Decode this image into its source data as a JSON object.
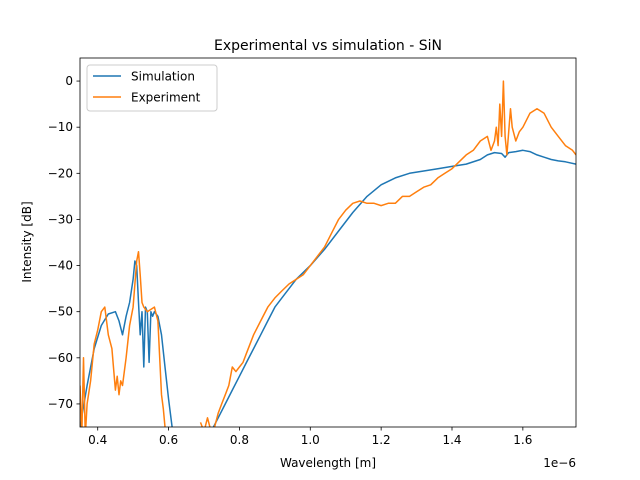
{
  "chart_data": {
    "type": "line",
    "title": "Experimental vs simulation - SiN",
    "xlabel": "Wavelength [m]",
    "ylabel": "Intensity [dB]",
    "x_offset_label": "1e−6",
    "xlim": [
      0.35,
      1.75
    ],
    "ylim": [
      -75,
      5
    ],
    "x_scale_note": "x values in units of 1e-6 m",
    "xticks": [
      0.4,
      0.6,
      0.8,
      1.0,
      1.2,
      1.4,
      1.6
    ],
    "xtick_labels": [
      "0.4",
      "0.6",
      "0.8",
      "1.0",
      "1.2",
      "1.4",
      "1.6"
    ],
    "yticks": [
      0,
      -10,
      -20,
      -30,
      -40,
      -50,
      -60,
      -70
    ],
    "ytick_labels": [
      "0",
      "−10",
      "−20",
      "−30",
      "−40",
      "−50",
      "−60",
      "−70"
    ],
    "grid": false,
    "legend_position": "upper-left",
    "series": [
      {
        "name": "Simulation",
        "color": "#1f77b4",
        "x": [
          0.35,
          0.37,
          0.39,
          0.41,
          0.43,
          0.45,
          0.46,
          0.47,
          0.48,
          0.49,
          0.5,
          0.505,
          0.51,
          0.515,
          0.52,
          0.525,
          0.53,
          0.535,
          0.54,
          0.545,
          0.55,
          0.555,
          0.56,
          0.57,
          0.58,
          0.59,
          0.6,
          0.61,
          0.62
        ],
        "y": [
          -75,
          -66,
          -58,
          -53,
          -50.5,
          -50,
          -52,
          -55,
          -51,
          -48,
          -43,
          -39,
          -40,
          -48,
          -55,
          -50,
          -62,
          -49,
          -50,
          -61,
          -50,
          -51,
          -50,
          -51,
          -55,
          -62,
          -69,
          -75,
          -78
        ],
        "x2": [
          0.7,
          0.72,
          0.74,
          0.76,
          0.78,
          0.8,
          0.82,
          0.84,
          0.86,
          0.88,
          0.9,
          0.93,
          0.96,
          1.0,
          1.04,
          1.08,
          1.12,
          1.16,
          1.2,
          1.24,
          1.28,
          1.32,
          1.36,
          1.4,
          1.44,
          1.48,
          1.5,
          1.52,
          1.54,
          1.55,
          1.56,
          1.58,
          1.6,
          1.62,
          1.64,
          1.66,
          1.68,
          1.7,
          1.72,
          1.75
        ],
        "y2": [
          -79,
          -76,
          -73,
          -70,
          -67,
          -64,
          -61,
          -58,
          -55,
          -52,
          -49,
          -46,
          -43,
          -40,
          -36.5,
          -32.5,
          -28.5,
          -25,
          -22.5,
          -21,
          -20,
          -19.5,
          -19,
          -18.5,
          -18,
          -17,
          -16,
          -15.5,
          -15.7,
          -16.5,
          -15.5,
          -15.3,
          -15,
          -15.3,
          -16,
          -16.5,
          -17,
          -17.3,
          -17.5,
          -18
        ]
      },
      {
        "name": "Experiment",
        "color": "#ff7f0e",
        "x": [
          0.35,
          0.355,
          0.36,
          0.365,
          0.37,
          0.38,
          0.39,
          0.4,
          0.41,
          0.42,
          0.43,
          0.44,
          0.45,
          0.455,
          0.46,
          0.465,
          0.47,
          0.48,
          0.49,
          0.5,
          0.505,
          0.51,
          0.515,
          0.52,
          0.525,
          0.53,
          0.54,
          0.55,
          0.56,
          0.57,
          0.575,
          0.58,
          0.585,
          0.59
        ],
        "y": [
          -66,
          -77,
          -60,
          -77,
          -70,
          -65,
          -57,
          -54,
          -50,
          -49,
          -55,
          -58,
          -67,
          -64,
          -68,
          -65,
          -66,
          -60,
          -53,
          -49,
          -44,
          -39,
          -37,
          -42,
          -48,
          -49,
          -50,
          -49.5,
          -49,
          -52,
          -60,
          -68,
          -71,
          -75
        ],
        "x2": [
          0.69,
          0.7,
          0.71,
          0.72,
          0.73,
          0.74,
          0.75,
          0.76,
          0.77,
          0.78,
          0.79,
          0.8,
          0.81,
          0.82,
          0.84,
          0.86,
          0.88,
          0.9,
          0.92,
          0.94,
          0.96,
          0.98,
          1.0,
          1.02,
          1.04,
          1.06,
          1.08,
          1.1,
          1.12,
          1.14,
          1.16,
          1.18,
          1.2,
          1.22,
          1.24,
          1.26,
          1.28,
          1.3,
          1.32,
          1.34,
          1.36,
          1.38,
          1.4,
          1.42,
          1.44,
          1.46,
          1.48,
          1.5,
          1.51,
          1.52,
          1.525,
          1.53,
          1.535,
          1.54,
          1.545,
          1.55,
          1.555,
          1.56,
          1.565,
          1.57,
          1.58,
          1.59,
          1.6,
          1.62,
          1.64,
          1.66,
          1.68,
          1.7,
          1.72,
          1.74,
          1.75
        ],
        "y2": [
          -74,
          -76,
          -73,
          -76,
          -75,
          -72,
          -70,
          -68,
          -66,
          -62,
          -63,
          -62,
          -61,
          -59,
          -55,
          -52,
          -49,
          -47,
          -45.5,
          -44,
          -43,
          -42,
          -40,
          -38,
          -36,
          -33,
          -30,
          -28,
          -26.5,
          -26,
          -26.5,
          -26.5,
          -27,
          -26.5,
          -26.5,
          -25,
          -25,
          -24,
          -23,
          -22.5,
          -21,
          -20,
          -19,
          -17.5,
          -16,
          -15,
          -13,
          -12,
          -15,
          -13,
          -10,
          -14,
          -5,
          -12,
          0,
          -12,
          -16,
          -11,
          -6,
          -10,
          -13,
          -11,
          -10,
          -7,
          -6,
          -7,
          -10,
          -12,
          -14,
          -15,
          -16
        ]
      }
    ]
  }
}
